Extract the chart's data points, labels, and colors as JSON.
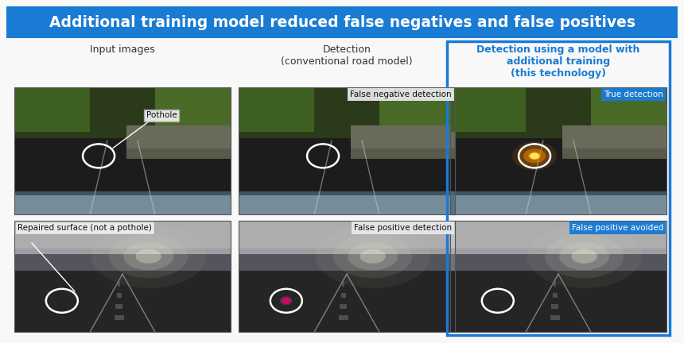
{
  "title": "Additional training model reduced false negatives and false positives",
  "title_bg_color": "#1a7bd4",
  "title_text_color": "#ffffff",
  "title_fontsize": 13.5,
  "bg_color": "#f8f8f8",
  "col1_header": "Input images",
  "col2_header": "Detection\n(conventional road model)",
  "col3_header": "Detection using a model with\nadditional training\n(this technology)",
  "col3_header_color": "#1a7bd4",
  "col3_border_color": "#1a7bd4",
  "header_fontsize": 9,
  "blue_label_bg_color": "#1a7bd4",
  "blue_label_text_color": "#ffffff",
  "row1_col1_label": "Pothole",
  "row1_col2_label": "False negative detection",
  "row1_col3_label": "True detection",
  "row2_col1_label": "Repaired surface (not a pothole)",
  "row2_col2_label": "False positive detection",
  "row2_col3_label": "False positive avoided",
  "label_fontsize": 7.5,
  "circle_color": "#ffffff",
  "pothole_glow_color": "#ff8c00",
  "fp_dot_color": "#d4006e",
  "fig_width": 8.6,
  "fig_height": 4.32
}
